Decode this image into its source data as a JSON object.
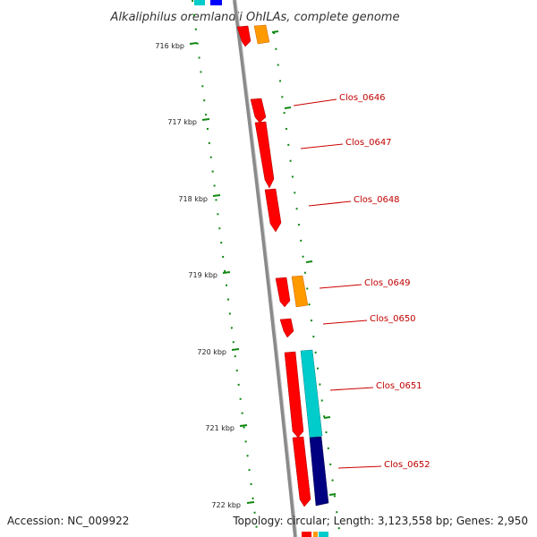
{
  "title": "Alkaliphilus oremlandii OhILAs, complete genome",
  "footer": {
    "accession": "Accession: NC_009922",
    "topology": "Topology: circular; Length: 3,123,558 bp; Genes: 2,950"
  },
  "colors": {
    "gene_red": "#ff0000",
    "gene_orange": "#ff9900",
    "gene_cyan": "#00cccc",
    "gene_navy": "#000080",
    "gene_blue": "#0000ff",
    "backbone": "#808080",
    "tick_green": "#118811",
    "label_red": "#cc0000"
  },
  "ticks": [
    {
      "label": "716 kbp"
    },
    {
      "label": "717 kbp"
    },
    {
      "label": "718 kbp"
    },
    {
      "label": "719 kbp"
    },
    {
      "label": "720 kbp"
    },
    {
      "label": "721 kbp"
    },
    {
      "label": "722 kbp"
    }
  ],
  "genes": [
    {
      "label": "Clos_0646"
    },
    {
      "label": "Clos_0647"
    },
    {
      "label": "Clos_0648"
    },
    {
      "label": "Clos_0649"
    },
    {
      "label": "Clos_0650"
    },
    {
      "label": "Clos_0651"
    },
    {
      "label": "Clos_0652"
    }
  ]
}
